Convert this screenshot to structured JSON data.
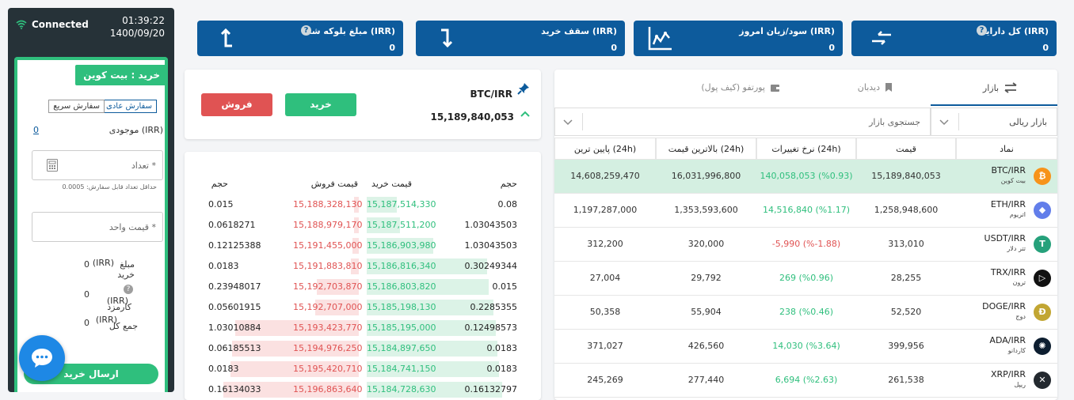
{
  "status": {
    "connection": "Connected",
    "time": "01:39:22",
    "date": "1400/09/20"
  },
  "order_form": {
    "title": "خرید : بیت کوین",
    "tab_normal": "سفارش عادی",
    "tab_fast": "سفارش سریع",
    "balance_label": "موجودی (IRR)",
    "balance_value": "0",
    "amount_placeholder": "تعداد *",
    "min_amount_note": "حداقل تعداد قابل سفارش: 0.0005",
    "unit_price_placeholder": "قیمت واحد *",
    "buy_amount_label": "مبلغ خرید",
    "buy_amount_unit": "(IRR)",
    "buy_amount_value": "0",
    "fee_label": "کارمزد",
    "fee_unit": "(IRR)",
    "fee_value": "0",
    "total_label": "جمع کل",
    "total_unit": "(IRR)",
    "total_value": "0",
    "submit_label": "ارسال خرید"
  },
  "stats": [
    {
      "title": "کل دارایی (IRR)",
      "value": "0",
      "icon": "transfer-icon"
    },
    {
      "title": "سود/زیان امروز (IRR)",
      "value": "0",
      "icon": "chart-line-icon"
    },
    {
      "title": "سقف خرید (IRR)",
      "value": "0",
      "icon": "arrow-down-icon"
    },
    {
      "title": "مبلغ بلوکه شده (IRR)",
      "value": "0",
      "icon": "arrow-up-icon"
    }
  ],
  "trade": {
    "pair": "BTC/IRR",
    "price": "15,189,840,053",
    "buy_label": "خرید",
    "sell_label": "فروش"
  },
  "order_book": {
    "headers": {
      "volume_bid": "حجم",
      "bid_price": "قیمت خرید",
      "ask_price": "قیمت فروش",
      "volume_ask": "حجم"
    },
    "rows": [
      {
        "bid_vol": "0.08",
        "bid": "15,187,514,330",
        "ask": "15,188,328,130",
        "ask_vol": "0.015",
        "bid_fill": 0.2,
        "ask_fill": 0.03
      },
      {
        "bid_vol": "1.03043503",
        "bid": "15,187,511,200",
        "ask": "15,188,979,170",
        "ask_vol": "0.0618271",
        "bid_fill": 0.22,
        "ask_fill": 0.03
      },
      {
        "bid_vol": "1.03043503",
        "bid": "15,186,903,980",
        "ask": "15,191,455,000",
        "ask_vol": "0.12125388",
        "bid_fill": 0.44,
        "ask_fill": 0.04
      },
      {
        "bid_vol": "0.30249344",
        "bid": "15,186,816,340",
        "ask": "15,191,883,810",
        "ask_vol": "0.0183",
        "bid_fill": 0.8,
        "ask_fill": 0.05
      },
      {
        "bid_vol": "0.015",
        "bid": "15,186,803,820",
        "ask": "15,192,703,870",
        "ask_vol": "0.23948017",
        "bid_fill": 0.81,
        "ask_fill": 0.28
      },
      {
        "bid_vol": "0.2285355",
        "bid": "15,185,198,130",
        "ask": "15,192,707,000",
        "ask_vol": "0.05601915",
        "bid_fill": 0.84,
        "ask_fill": 0.29
      },
      {
        "bid_vol": "0.12498573",
        "bid": "15,185,195,000",
        "ask": "15,193,423,770",
        "ask_vol": "1.03010884",
        "bid_fill": 0.86,
        "ask_fill": 0.82
      },
      {
        "bid_vol": "0.0183",
        "bid": "15,184,897,650",
        "ask": "15,194,976,250",
        "ask_vol": "0.06185513",
        "bid_fill": 0.87,
        "ask_fill": 0.84
      },
      {
        "bid_vol": "0.0183",
        "bid": "15,184,741,150",
        "ask": "15,195,420,710",
        "ask_vol": "0.0183",
        "bid_fill": 0.88,
        "ask_fill": 0.85
      },
      {
        "bid_vol": "0.16132797",
        "bid": "15,184,728,630",
        "ask": "15,196,863,640",
        "ask_vol": "0.16134033",
        "bid_fill": 0.9,
        "ask_fill": 0.9
      }
    ]
  },
  "market": {
    "tabs": {
      "market": "بازار",
      "watchlist": "دیدبان",
      "portfolio": "پورتفو (کیف پول)"
    },
    "filter_value": "بازار ریالی",
    "search_placeholder": "جستجوی بازار",
    "columns": {
      "symbol": "نماد",
      "price": "قیمت",
      "change": "نرخ تغییرات (24h)",
      "high": "بالاترین قیمت (24h)",
      "low": "پایین ترین (24h)"
    },
    "rows": [
      {
        "symbol": "BTC/IRR",
        "name": "بیت کوین",
        "price": "15,189,840,053",
        "change": "140,058,053 (%0.93)",
        "high": "16,031,996,800",
        "low": "14,608,259,470",
        "color": "#f7931a",
        "glyph": "₿",
        "trend": "up"
      },
      {
        "symbol": "ETH/IRR",
        "name": "اتریوم",
        "price": "1,258,948,600",
        "change": "14,516,840 (%1.17)",
        "high": "1,353,593,600",
        "low": "1,197,287,000",
        "color": "#627eea",
        "glyph": "◆",
        "trend": "up"
      },
      {
        "symbol": "USDT/IRR",
        "name": "تتر دلار",
        "price": "313,010",
        "change": "-5,990 (%-1.88)",
        "high": "320,000",
        "low": "312,200",
        "color": "#26a17b",
        "glyph": "T",
        "trend": "down"
      },
      {
        "symbol": "TRX/IRR",
        "name": "ترون",
        "price": "28,255",
        "change": "269 (%0.96)",
        "high": "29,792",
        "low": "27,004",
        "color": "#111111",
        "glyph": "▷",
        "trend": "up"
      },
      {
        "symbol": "DOGE/IRR",
        "name": "دوج",
        "price": "52,520",
        "change": "238 (%0.46)",
        "high": "55,904",
        "low": "50,358",
        "color": "#c2a633",
        "glyph": "Ð",
        "trend": "up"
      },
      {
        "symbol": "ADA/IRR",
        "name": "کاردانو",
        "price": "399,956",
        "change": "14,030 (%3.64)",
        "high": "426,560",
        "low": "371,027",
        "color": "#0d1e30",
        "glyph": "✺",
        "trend": "up"
      },
      {
        "symbol": "XRP/IRR",
        "name": "ریپل",
        "price": "261,538",
        "change": "6,694 (%2.63)",
        "high": "277,440",
        "low": "245,269",
        "color": "#23292f",
        "glyph": "✕",
        "trend": "up"
      }
    ]
  },
  "colors": {
    "primary": "#0d5b9c",
    "green": "#2fbf7d",
    "red": "#e05353",
    "dark": "#263238"
  }
}
